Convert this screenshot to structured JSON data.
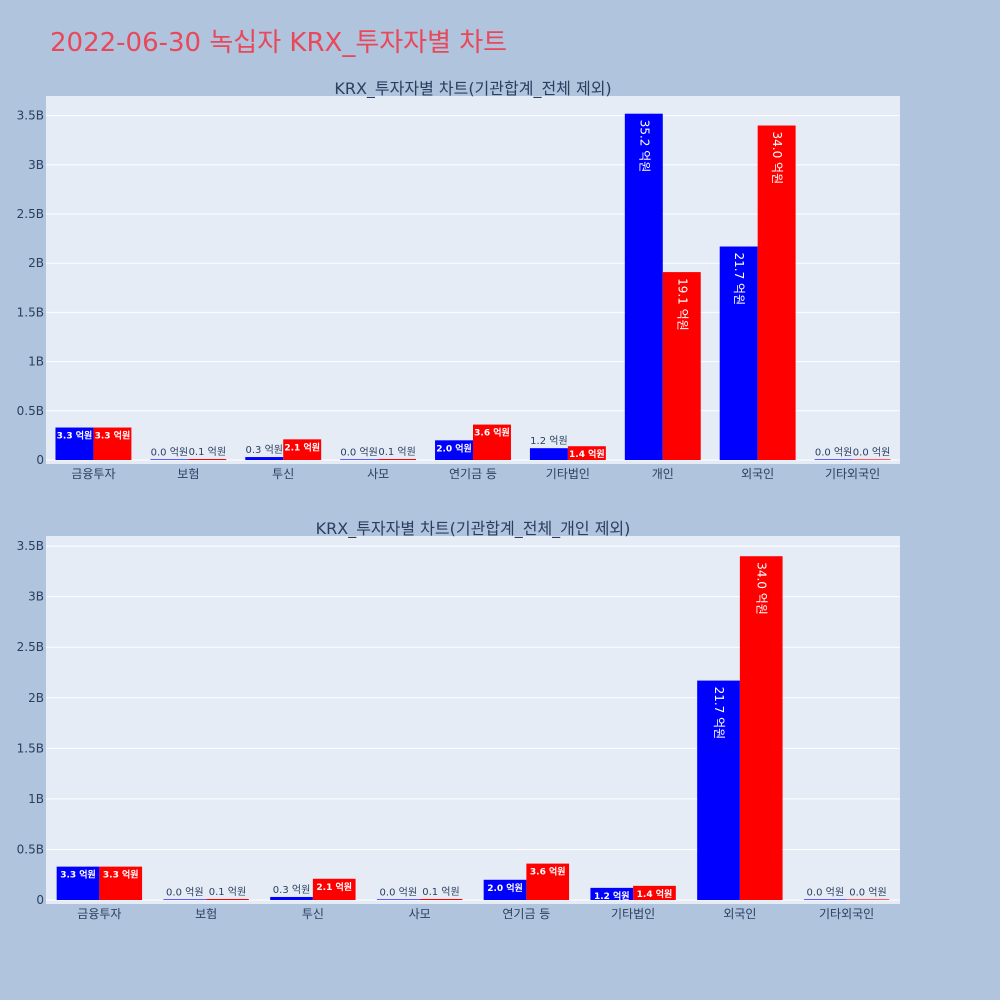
{
  "title": "2022-06-30 녹십자 KRX_투자자별 차트",
  "colors": {
    "buy": "#0000ff",
    "sell": "#ff0000",
    "title": "#e8485a",
    "background": "#b0c4de",
    "plot": "#e5ecf6"
  },
  "chart_data": [
    {
      "type": "bar",
      "title": "KRX_투자자별 차트(기관합계_전체 제외)",
      "categories": [
        "금융투자",
        "보험",
        "투신",
        "사모",
        "연기금 등",
        "기타법인",
        "개인",
        "외국인",
        "기타외국인"
      ],
      "yticks": [
        0,
        0.5,
        1,
        1.5,
        2,
        2.5,
        3,
        3.5
      ],
      "ytick_labels": [
        "0",
        "0.5B",
        "1B",
        "1.5B",
        "2B",
        "2.5B",
        "3B",
        "3.5B"
      ],
      "ylim": [
        0,
        3.7
      ],
      "series": [
        {
          "color": "#0000ff",
          "values": [
            0.33,
            0.0,
            0.03,
            0.0,
            0.2,
            0.12,
            3.52,
            2.17,
            0.0
          ],
          "labels": [
            "3.3 억원",
            "0.0 억원",
            "0.3 억원",
            "0.0 억원",
            "2.0 억원",
            "1.2 억원",
            "35.2 억원",
            "21.7 억원",
            "0.0 억원"
          ]
        },
        {
          "color": "#ff0000",
          "values": [
            0.33,
            0.01,
            0.21,
            0.01,
            0.36,
            0.14,
            1.91,
            3.4,
            0.0
          ],
          "labels": [
            "3.3 억원",
            "0.1 억원",
            "2.1 억원",
            "0.1 억원",
            "3.6 억원",
            "1.4 억원",
            "19.1 억원",
            "34.0 억원",
            "0.0 억원"
          ]
        }
      ],
      "grid": true
    },
    {
      "type": "bar",
      "title": "KRX_투자자별 차트(기관합계_전체_개인 제외)",
      "categories": [
        "금융투자",
        "보험",
        "투신",
        "사모",
        "연기금 등",
        "기타법인",
        "외국인",
        "기타외국인"
      ],
      "yticks": [
        0,
        0.5,
        1,
        1.5,
        2,
        2.5,
        3,
        3.5
      ],
      "ytick_labels": [
        "0",
        "0.5B",
        "1B",
        "1.5B",
        "2B",
        "2.5B",
        "3B",
        "3.5B"
      ],
      "ylim": [
        0,
        3.6
      ],
      "series": [
        {
          "color": "#0000ff",
          "values": [
            0.33,
            0.0,
            0.03,
            0.0,
            0.2,
            0.12,
            2.17,
            0.0
          ],
          "labels": [
            "3.3 억원",
            "0.0 억원",
            "0.3 억원",
            "0.0 억원",
            "2.0 억원",
            "1.2 억원",
            "21.7 억원",
            "0.0 억원"
          ]
        },
        {
          "color": "#ff0000",
          "values": [
            0.33,
            0.01,
            0.21,
            0.01,
            0.36,
            0.14,
            3.4,
            0.0
          ],
          "labels": [
            "3.3 억원",
            "0.1 억원",
            "2.1 억원",
            "0.1 억원",
            "3.6 억원",
            "1.4 억원",
            "34.0 억원",
            "0.0 억원"
          ]
        }
      ],
      "grid": true
    }
  ]
}
